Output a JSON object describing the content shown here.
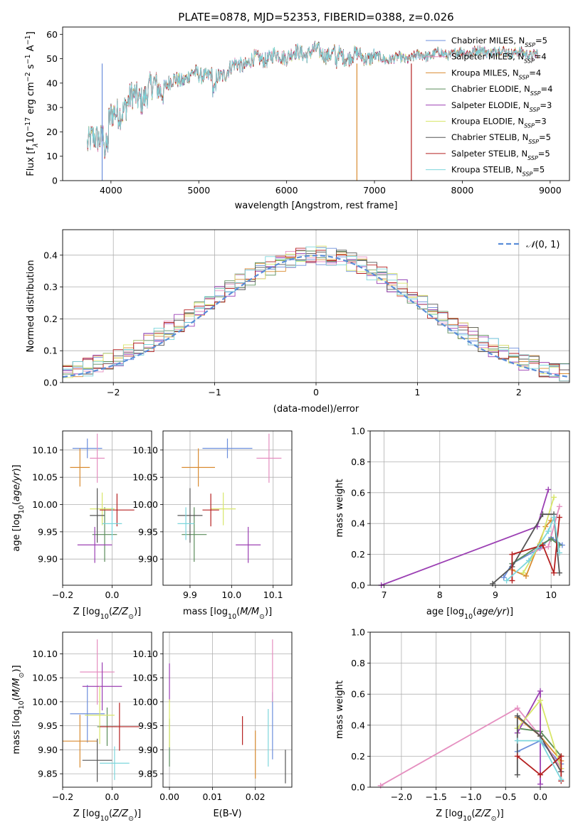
{
  "figure": {
    "title": "PLATE=0878, MJD=52353, FIBERID=0388, z=0.026"
  },
  "series_names": [
    "Chabrier MILES",
    "Salpeter MILES",
    "Kroupa MILES",
    "Chabrier ELODIE",
    "Salpeter ELODIE",
    "Kroupa ELODIE",
    "Chabrier STELIB",
    "Salpeter STELIB",
    "Kroupa STELIB"
  ],
  "series_colors": [
    "#6d8fdc",
    "#e58fc0",
    "#d98c32",
    "#5a8c5a",
    "#9b3fb3",
    "#d8e66a",
    "#555555",
    "#b52020",
    "#7dd6dc"
  ],
  "nssp": [
    "5",
    "4",
    "4",
    "4",
    "3",
    "3",
    "5",
    "5",
    "5"
  ],
  "chart_data": [
    {
      "type": "line",
      "title": "PLATE=0878, MJD=52353, FIBERID=0388, z=0.026",
      "xlabel": "wavelength [Angstrom, rest frame]",
      "ylabel_main": "Flux [f",
      "xlim": [
        3450,
        9220
      ],
      "ylim": [
        0,
        63
      ],
      "xticks": [
        4000,
        5000,
        6000,
        7000,
        8000,
        9000
      ],
      "yticks": [
        0,
        10,
        20,
        30,
        40,
        50,
        60
      ],
      "spectrum_anchors": {
        "wavelength": [
          3750,
          3850,
          3950,
          4050,
          4150,
          4300,
          4450,
          4600,
          4750,
          4900,
          5050,
          5200,
          5350,
          5500,
          5700,
          5900,
          6100,
          6300,
          6500,
          6700,
          6900,
          7100,
          7300,
          7500,
          7700,
          7900,
          8100,
          8300,
          8500,
          8700,
          8850
        ],
        "flux": [
          14,
          18,
          22,
          27,
          31,
          34,
          37,
          39,
          41,
          43,
          44,
          42,
          46,
          48,
          50,
          51,
          52,
          53,
          52,
          51,
          51,
          50,
          50,
          51,
          52,
          52,
          53,
          53,
          53,
          52,
          52
        ]
      },
      "legend_placement": "top-right",
      "grid": false
    },
    {
      "type": "histogram",
      "xlabel": "(data-model)/error",
      "ylabel": "Normed distribution",
      "xlim": [
        -2.5,
        2.5
      ],
      "ylim": [
        0,
        0.48
      ],
      "xticks": [
        -2,
        -1,
        0,
        1,
        2
      ],
      "yticks": [
        0.0,
        0.1,
        0.2,
        0.3,
        0.4
      ],
      "bin_width": 0.1,
      "reference_curve": "N(0,1)",
      "legend_placement": "top-right",
      "grid": true
    },
    {
      "type": "scatter",
      "subtype": "errorbar",
      "xlabel": "Z [log10(Z/Z⊙)]",
      "ylabel": "age [log10(age/yr)]",
      "xlim": [
        -0.2,
        0.16
      ],
      "ylim": [
        9.852,
        10.135
      ],
      "xticks": [
        -0.2,
        0.0
      ],
      "yticks": [
        9.9,
        9.95,
        10.0,
        10.05,
        10.1
      ],
      "points": [
        {
          "x": -0.1,
          "xerr": 0.06,
          "y": 10.103,
          "yerr": 0.018
        },
        {
          "x": -0.06,
          "xerr": 0.03,
          "y": 10.085,
          "yerr": 0.045
        },
        {
          "x": -0.13,
          "xerr": 0.04,
          "y": 10.068,
          "yerr": 0.035
        },
        {
          "x": -0.03,
          "xerr": 0.05,
          "y": 9.945,
          "yerr": 0.05
        },
        {
          "x": -0.07,
          "xerr": 0.07,
          "y": 9.926,
          "yerr": 0.033
        },
        {
          "x": -0.04,
          "xerr": 0.05,
          "y": 9.992,
          "yerr": 0.03
        },
        {
          "x": -0.06,
          "xerr": 0.03,
          "y": 9.98,
          "yerr": 0.05
        },
        {
          "x": 0.02,
          "xerr": 0.07,
          "y": 9.99,
          "yerr": 0.03
        },
        {
          "x": 0.0,
          "xerr": 0.04,
          "y": 9.965,
          "yerr": 0.03
        }
      ],
      "grid": true
    },
    {
      "type": "scatter",
      "subtype": "errorbar",
      "xlabel": "mass [log10(M/M⊙)]",
      "ylabel": "",
      "xlim": [
        9.835,
        10.145
      ],
      "ylim": [
        9.852,
        10.135
      ],
      "xticks": [
        9.9,
        10.0,
        10.1
      ],
      "yticks": [
        9.9,
        9.95,
        10.0,
        10.05,
        10.1
      ],
      "points": [
        {
          "x": 9.99,
          "xerr": 0.06,
          "y": 10.103,
          "yerr": 0.018
        },
        {
          "x": 10.09,
          "xerr": 0.03,
          "y": 10.085,
          "yerr": 0.045
        },
        {
          "x": 9.92,
          "xerr": 0.04,
          "y": 10.068,
          "yerr": 0.035
        },
        {
          "x": 9.91,
          "xerr": 0.03,
          "y": 9.945,
          "yerr": 0.05
        },
        {
          "x": 10.04,
          "xerr": 0.03,
          "y": 9.926,
          "yerr": 0.033
        },
        {
          "x": 9.98,
          "xerr": 0.03,
          "y": 9.992,
          "yerr": 0.03
        },
        {
          "x": 9.9,
          "xerr": 0.03,
          "y": 9.98,
          "yerr": 0.05
        },
        {
          "x": 9.95,
          "xerr": 0.02,
          "y": 9.99,
          "yerr": 0.03
        },
        {
          "x": 9.89,
          "xerr": 0.02,
          "y": 9.965,
          "yerr": 0.03
        }
      ],
      "grid": true
    },
    {
      "type": "line",
      "xlabel": "age  [log10(age/yr)]",
      "ylabel": "mass weight",
      "xlim": [
        6.75,
        10.33
      ],
      "ylim": [
        0,
        1.0
      ],
      "xticks": [
        7,
        8,
        9,
        10
      ],
      "yticks": [
        0.0,
        0.2,
        0.4,
        0.6,
        0.8,
        1.0
      ],
      "series": [
        {
          "x": [
            9.15,
            9.3,
            9.8,
            10.0,
            10.2
          ],
          "y": [
            0.05,
            0.14,
            0.24,
            0.31,
            0.26
          ]
        },
        {
          "x": [
            9.7,
            9.95,
            10.15
          ],
          "y": [
            0.22,
            0.25,
            0.51
          ]
        },
        {
          "x": [
            9.3,
            9.55,
            9.9,
            10.0
          ],
          "y": [
            0.1,
            0.06,
            0.38,
            0.42
          ]
        },
        {
          "x": [
            9.3,
            9.8,
            10.0,
            10.15
          ],
          "y": [
            0.14,
            0.26,
            0.3,
            0.26
          ]
        },
        {
          "x": [
            6.95,
            9.75,
            9.95
          ],
          "y": [
            0.0,
            0.38,
            0.62
          ]
        },
        {
          "x": [
            9.5,
            9.8,
            10.05
          ],
          "y": [
            0.08,
            0.27,
            0.57
          ]
        },
        {
          "x": [
            8.95,
            9.3,
            9.85,
            10.05,
            10.15
          ],
          "y": [
            0.01,
            0.12,
            0.46,
            0.46,
            0.08
          ]
        },
        {
          "x": [
            9.3,
            9.3,
            9.85,
            10.05,
            10.15
          ],
          "y": [
            0.03,
            0.2,
            0.26,
            0.08,
            0.44
          ]
        },
        {
          "x": [
            9.2,
            9.6,
            9.95,
            10.05,
            10.15
          ],
          "y": [
            0.03,
            0.16,
            0.35,
            0.44,
            0.21
          ]
        }
      ],
      "grid": true
    },
    {
      "type": "scatter",
      "subtype": "errorbar",
      "xlabel": "Z [log10(Z/Z⊙)]",
      "ylabel": "mass [log10(M/M⊙)]",
      "xlim": [
        -0.2,
        0.16
      ],
      "ylim": [
        9.822,
        10.145
      ],
      "xticks": [
        -0.2,
        0.0
      ],
      "yticks": [
        9.85,
        9.9,
        9.95,
        10.0,
        10.05,
        10.1
      ],
      "points": [
        {
          "x": -0.1,
          "xerr": 0.07,
          "y": 9.975,
          "yerr": 0.06
        },
        {
          "x": -0.06,
          "xerr": 0.07,
          "y": 10.062,
          "yerr": 0.068
        },
        {
          "x": -0.13,
          "xerr": 0.07,
          "y": 9.918,
          "yerr": 0.055
        },
        {
          "x": -0.02,
          "xerr": 0.04,
          "y": 9.948,
          "yerr": 0.04
        },
        {
          "x": -0.04,
          "xerr": 0.08,
          "y": 10.032,
          "yerr": 0.05
        },
        {
          "x": -0.05,
          "xerr": 0.06,
          "y": 9.972,
          "yerr": 0.06
        },
        {
          "x": -0.06,
          "xerr": 0.06,
          "y": 9.878,
          "yerr": 0.045
        },
        {
          "x": 0.03,
          "xerr": 0.08,
          "y": 9.948,
          "yerr": 0.05
        },
        {
          "x": 0.01,
          "xerr": 0.06,
          "y": 9.872,
          "yerr": 0.035
        }
      ],
      "grid": true
    },
    {
      "type": "scatter",
      "subtype": "errorbar",
      "xlabel": "E(B-V)",
      "ylabel": "",
      "xlim": [
        -0.0015,
        0.0285
      ],
      "ylim": [
        9.822,
        10.145
      ],
      "xticks": [
        0.0,
        0.01,
        0.02
      ],
      "yticks": [
        9.85,
        9.9,
        9.95,
        10.0,
        10.05,
        10.1
      ],
      "points": [
        {
          "x": 0.024,
          "y": 9.95,
          "yerr": 0.07
        },
        {
          "x": 0.024,
          "y": 10.065,
          "yerr": 0.065
        },
        {
          "x": 0.02,
          "y": 9.89,
          "yerr": 0.05
        },
        {
          "x": 0.0,
          "y": 9.915,
          "yerr": 0.05
        },
        {
          "x": 0.0,
          "y": 10.04,
          "yerr": 0.04
        },
        {
          "x": 0.0,
          "y": 9.955,
          "yerr": 0.05
        },
        {
          "x": 0.027,
          "y": 9.865,
          "yerr": 0.035
        },
        {
          "x": 0.017,
          "y": 9.94,
          "yerr": 0.03
        },
        {
          "x": 0.023,
          "y": 9.925,
          "yerr": 0.06
        }
      ],
      "grid": true
    },
    {
      "type": "line",
      "xlabel": "Z [log10(Z/Z⊙)]",
      "ylabel": "mass weight",
      "xlim": [
        -2.45,
        0.42
      ],
      "ylim": [
        0,
        1.0
      ],
      "xticks": [
        -2.0,
        -1.5,
        -1.0,
        -0.5,
        0.0
      ],
      "yticks": [
        0.0,
        0.2,
        0.4,
        0.6,
        0.8,
        1.0
      ],
      "series": [
        {
          "x": [
            -0.33,
            0.0,
            0.3,
            0.3
          ],
          "y": [
            0.23,
            0.3,
            0.15,
            0.1
          ]
        },
        {
          "x": [
            -2.3,
            -0.33,
            0.0,
            0.3
          ],
          "y": [
            0.01,
            0.51,
            0.33,
            0.12
          ]
        },
        {
          "x": [
            -0.33,
            0.0,
            0.3
          ],
          "y": [
            0.45,
            0.33,
            0.17
          ]
        },
        {
          "x": [
            -0.33,
            0.0,
            0.3
          ],
          "y": [
            0.38,
            0.36,
            0.2
          ]
        },
        {
          "x": [
            -0.33,
            0.0,
            0.0
          ],
          "y": [
            0.35,
            0.62,
            0.02
          ]
        },
        {
          "x": [
            -0.33,
            0.0,
            0.3
          ],
          "y": [
            0.38,
            0.56,
            0.12
          ]
        },
        {
          "x": [
            -0.33,
            -0.33,
            0.0,
            0.3
          ],
          "y": [
            0.08,
            0.46,
            0.33,
            0.1
          ]
        },
        {
          "x": [
            -0.33,
            0.0,
            0.3,
            0.3
          ],
          "y": [
            0.2,
            0.08,
            0.2,
            0.04
          ]
        },
        {
          "x": [
            -0.33,
            0.0,
            0.3
          ],
          "y": [
            0.3,
            0.3,
            0.05
          ]
        }
      ],
      "grid": true
    }
  ]
}
